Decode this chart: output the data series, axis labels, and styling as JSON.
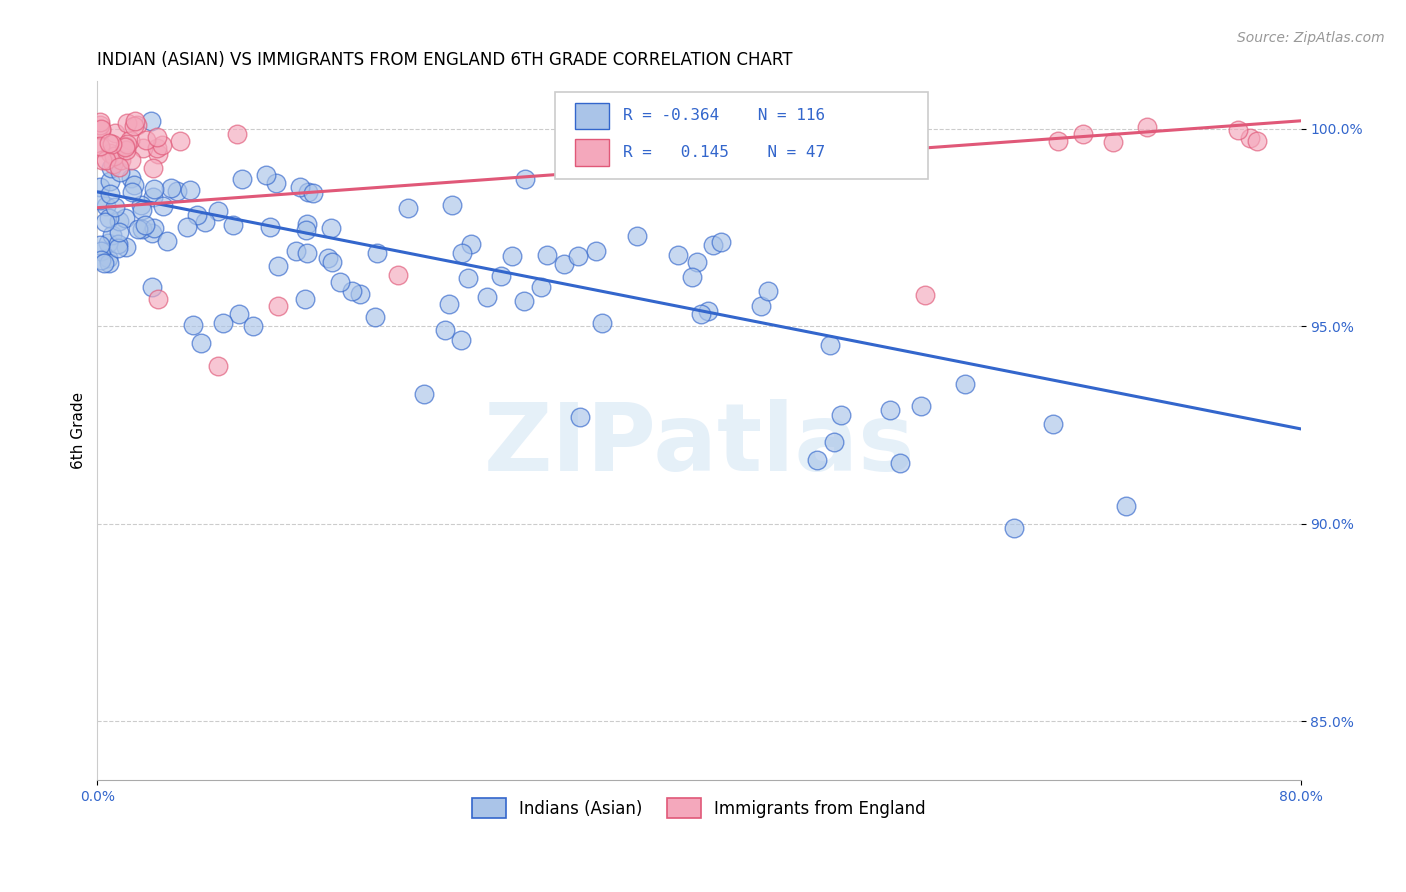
{
  "title": "INDIAN (ASIAN) VS IMMIGRANTS FROM ENGLAND 6TH GRADE CORRELATION CHART",
  "source": "Source: ZipAtlas.com",
  "ylabel": "6th Grade",
  "blue_R": -0.364,
  "blue_N": 116,
  "pink_R": 0.145,
  "pink_N": 47,
  "blue_color": "#aac4e8",
  "pink_color": "#f4a8bc",
  "blue_line_color": "#3366cc",
  "pink_line_color": "#e05878",
  "legend_label_blue": "Indians (Asian)",
  "legend_label_pink": "Immigrants from England",
  "watermark_text": "ZIPatlas",
  "xlim": [
    0.0,
    0.8
  ],
  "ylim": [
    0.835,
    1.012
  ],
  "ytick_vals": [
    0.85,
    0.9,
    0.95,
    1.0
  ],
  "ytick_labels": [
    "85.0%",
    "90.0%",
    "95.0%",
    "100.0%"
  ],
  "xtick_vals": [
    0.0,
    0.8
  ],
  "xtick_labels": [
    "0.0%",
    "80.0%"
  ],
  "blue_line_x0": 0.0,
  "blue_line_y0": 0.984,
  "blue_line_x1": 0.8,
  "blue_line_y1": 0.924,
  "pink_line_x0": 0.0,
  "pink_line_y0": 0.98,
  "pink_line_x1": 0.8,
  "pink_line_y1": 1.002,
  "title_fontsize": 12,
  "source_fontsize": 10,
  "tick_fontsize": 10,
  "legend_fontsize": 12,
  "ylabel_fontsize": 11
}
